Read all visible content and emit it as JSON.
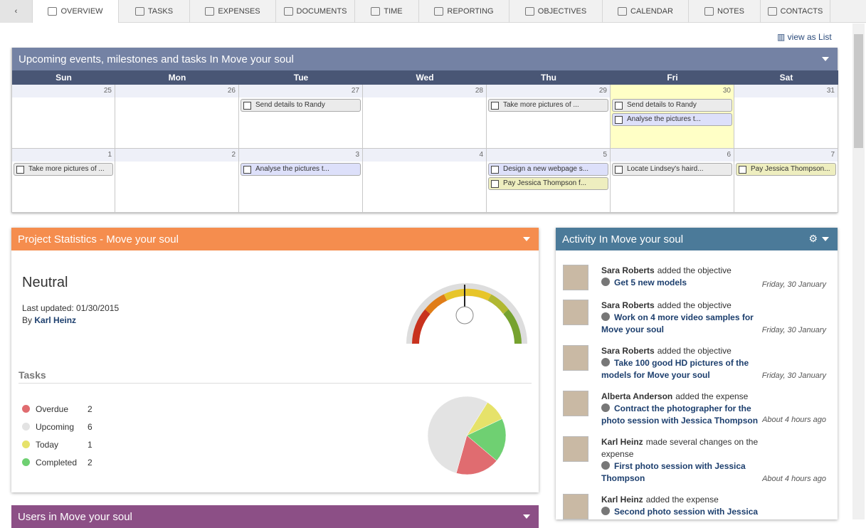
{
  "nav": {
    "tabs": [
      "OVERVIEW",
      "TASKS",
      "EXPENSES",
      "DOCUMENTS",
      "TIME",
      "REPORTING",
      "OBJECTIVES",
      "CALENDAR",
      "NOTES",
      "CONTACTS"
    ]
  },
  "view_as_list": "view as List",
  "calendar": {
    "title": "Upcoming events, milestones and tasks In Move your soul",
    "days": [
      "Sun",
      "Mon",
      "Tue",
      "Wed",
      "Thu",
      "Fri",
      "Sat"
    ],
    "weeks": [
      [
        {
          "day": "25",
          "events": []
        },
        {
          "day": "26",
          "events": []
        },
        {
          "day": "27",
          "events": [
            {
              "text": "Send details to Randy",
              "color": "#ebebeb"
            }
          ]
        },
        {
          "day": "28",
          "events": []
        },
        {
          "day": "29",
          "events": [
            {
              "text": "Take more pictures of ...",
              "color": "#ebebeb"
            }
          ]
        },
        {
          "day": "30",
          "color": "#ffffc6",
          "events": [
            {
              "text": "Send details to Randy",
              "color": "#ebebeb"
            },
            {
              "text": "Analyse the pictures t...",
              "color": "#dde0fa"
            }
          ]
        },
        {
          "day": "31",
          "events": []
        }
      ],
      [
        {
          "day": "1",
          "events": [
            {
              "text": "Take more pictures of ...",
              "color": "#ebebeb"
            }
          ]
        },
        {
          "day": "2",
          "events": []
        },
        {
          "day": "3",
          "events": [
            {
              "text": "Analyse the pictures t...",
              "color": "#dde0fa"
            }
          ]
        },
        {
          "day": "4",
          "events": []
        },
        {
          "day": "5",
          "events": [
            {
              "text": "Design a new webpage s...",
              "color": "#dde0fa"
            },
            {
              "text": "Pay Jessica Thompson f...",
              "color": "#eeeebf"
            }
          ]
        },
        {
          "day": "6",
          "events": [
            {
              "text": "Locate Lindsey's haird...",
              "color": "#ebebeb"
            }
          ]
        },
        {
          "day": "7",
          "events": [
            {
              "text": "Pay Jessica Thompson...",
              "color": "#eeeebf"
            }
          ]
        }
      ]
    ]
  },
  "stats": {
    "title": "Project Statistics - Move your soul",
    "status": "Neutral",
    "last_updated": "Last updated: 01/30/2015",
    "by": "By",
    "author": "Karl Heinz",
    "tasks": {
      "heading": "Tasks",
      "items": [
        {
          "label": "Overdue",
          "value": 2,
          "color": "#e06c70"
        },
        {
          "label": "Upcoming",
          "value": 6,
          "color": "#e3e3e3"
        },
        {
          "label": "Today",
          "value": 1,
          "color": "#e6e26a"
        },
        {
          "label": "Completed",
          "value": 2,
          "color": "#6fd072"
        }
      ]
    }
  },
  "activity": {
    "title": "Activity In Move your soul",
    "items": [
      {
        "user": "Sara Roberts",
        "action": "added the objective",
        "link": "Get 5 new models",
        "date": "Friday, 30 January"
      },
      {
        "user": "Sara Roberts",
        "action": "added the objective",
        "link": "Work on 4 more video samples for Move your soul",
        "date": "Friday, 30 January"
      },
      {
        "user": "Sara Roberts",
        "action": "added the objective",
        "link": "Take 100 good HD pictures of the models for Move your soul",
        "date": "Friday, 30 January"
      },
      {
        "user": "Alberta Anderson",
        "action": "added the expense",
        "link": "Contract the photographer for the photo session with Jessica Thompson",
        "date": "About 4 hours ago"
      },
      {
        "user": "Karl Heinz",
        "action": "made several changes on the expense",
        "link": "First photo session with Jessica Thompson",
        "date": "About 4 hours ago"
      },
      {
        "user": "Karl Heinz",
        "action": "added the expense",
        "link": "Second photo session with Jessica"
      }
    ]
  },
  "users": {
    "title": "Users in Move your soul"
  }
}
